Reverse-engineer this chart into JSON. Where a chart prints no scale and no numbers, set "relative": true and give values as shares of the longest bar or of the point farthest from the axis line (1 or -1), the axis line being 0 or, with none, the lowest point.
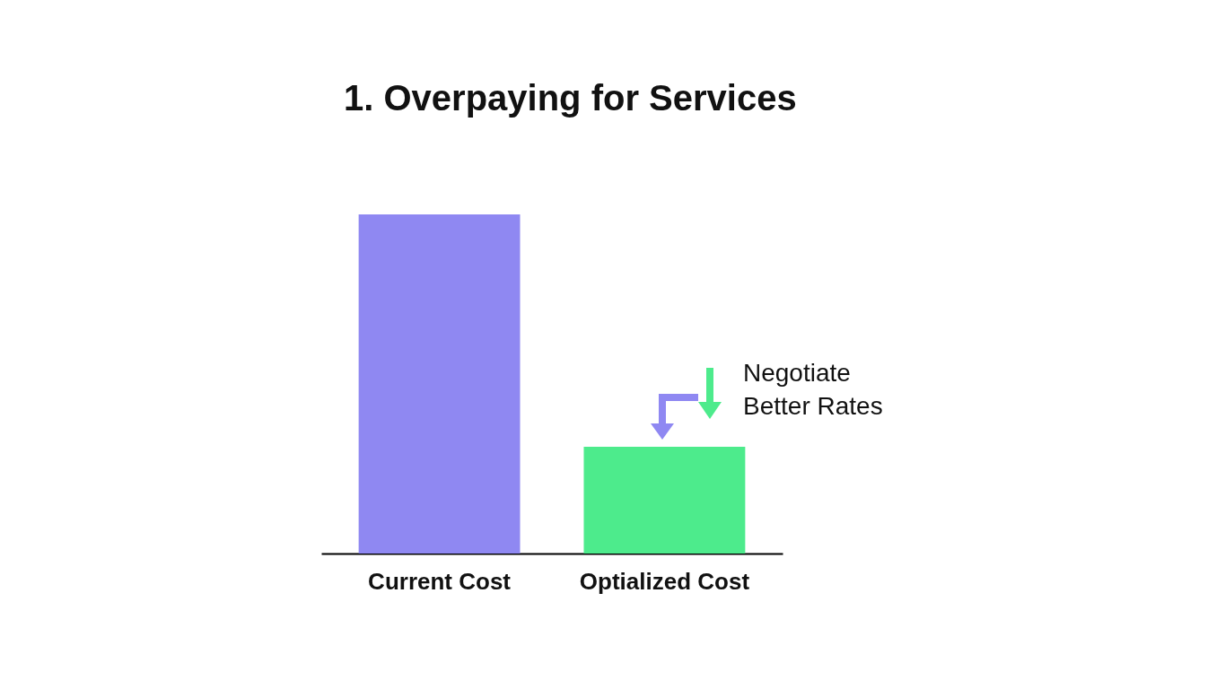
{
  "chart_data": {
    "type": "bar",
    "title": "1. Overpaying for Services",
    "relative": true,
    "categories": [
      "Current Cost",
      "Optialized Cost"
    ],
    "values": [
      1,
      0.315
    ],
    "colors": [
      "#8f88f2",
      "#4deb8c"
    ],
    "annotations": [
      "Negotiate\nBetter Rates"
    ]
  }
}
